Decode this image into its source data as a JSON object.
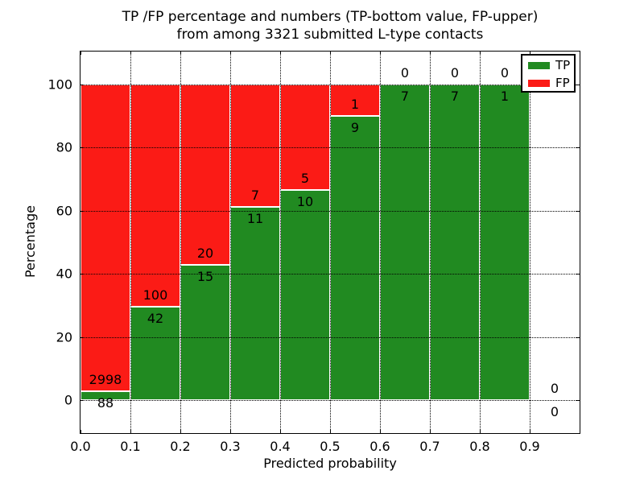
{
  "figure": {
    "title_line1": "TP /FP percentage and numbers (TP-bottom value, FP-upper)",
    "title_line2": "from among 3321 submitted L-type contacts",
    "x_axis_label": "Predicted probability",
    "y_axis_label": "Percentage"
  },
  "legend": {
    "position": "upper-right",
    "items": [
      {
        "label": "TP",
        "color": "#218a21"
      },
      {
        "label": "FP",
        "color": "#fb1b16"
      }
    ]
  },
  "chart_data": {
    "type": "bar",
    "subtype": "stacked-percentage-histogram",
    "title": "TP /FP percentage and numbers (TP-bottom value, FP-upper) from among 3321 submitted L-type contacts",
    "xlabel": "Predicted probability",
    "ylabel": "Percentage",
    "total_submitted": 3321,
    "xlim": [
      0,
      1.0
    ],
    "ylim": [
      -10.5,
      110.5
    ],
    "x_tick_labels": [
      "0.0",
      "0.1",
      "0.2",
      "0.3",
      "0.4",
      "0.5",
      "0.6",
      "0.7",
      "0.8",
      "0.9"
    ],
    "y_tick_labels": [
      "0",
      "20",
      "40",
      "60",
      "80",
      "100"
    ],
    "grid": "dotted-both-axes",
    "legend_position": "upper right",
    "bin_width": 0.1,
    "bin_ranges": [
      "0.0-0.1",
      "0.1-0.2",
      "0.2-0.3",
      "0.3-0.4",
      "0.4-0.5",
      "0.5-0.6",
      "0.6-0.7",
      "0.7-0.8",
      "0.8-0.9",
      "0.9-1.0"
    ],
    "series": [
      {
        "name": "TP",
        "color": "#218a21",
        "counts": [
          88,
          42,
          15,
          11,
          10,
          9,
          7,
          7,
          1,
          0
        ]
      },
      {
        "name": "FP",
        "color": "#fb1b16",
        "counts": [
          2998,
          100,
          20,
          7,
          5,
          1,
          0,
          0,
          0,
          0
        ]
      }
    ],
    "tp_percent_heights": [
      2.9,
      29.6,
      42.9,
      61.1,
      66.7,
      90.0,
      100.0,
      100.0,
      100.0,
      0.0
    ],
    "bar_edge_color": "#ffffff"
  }
}
